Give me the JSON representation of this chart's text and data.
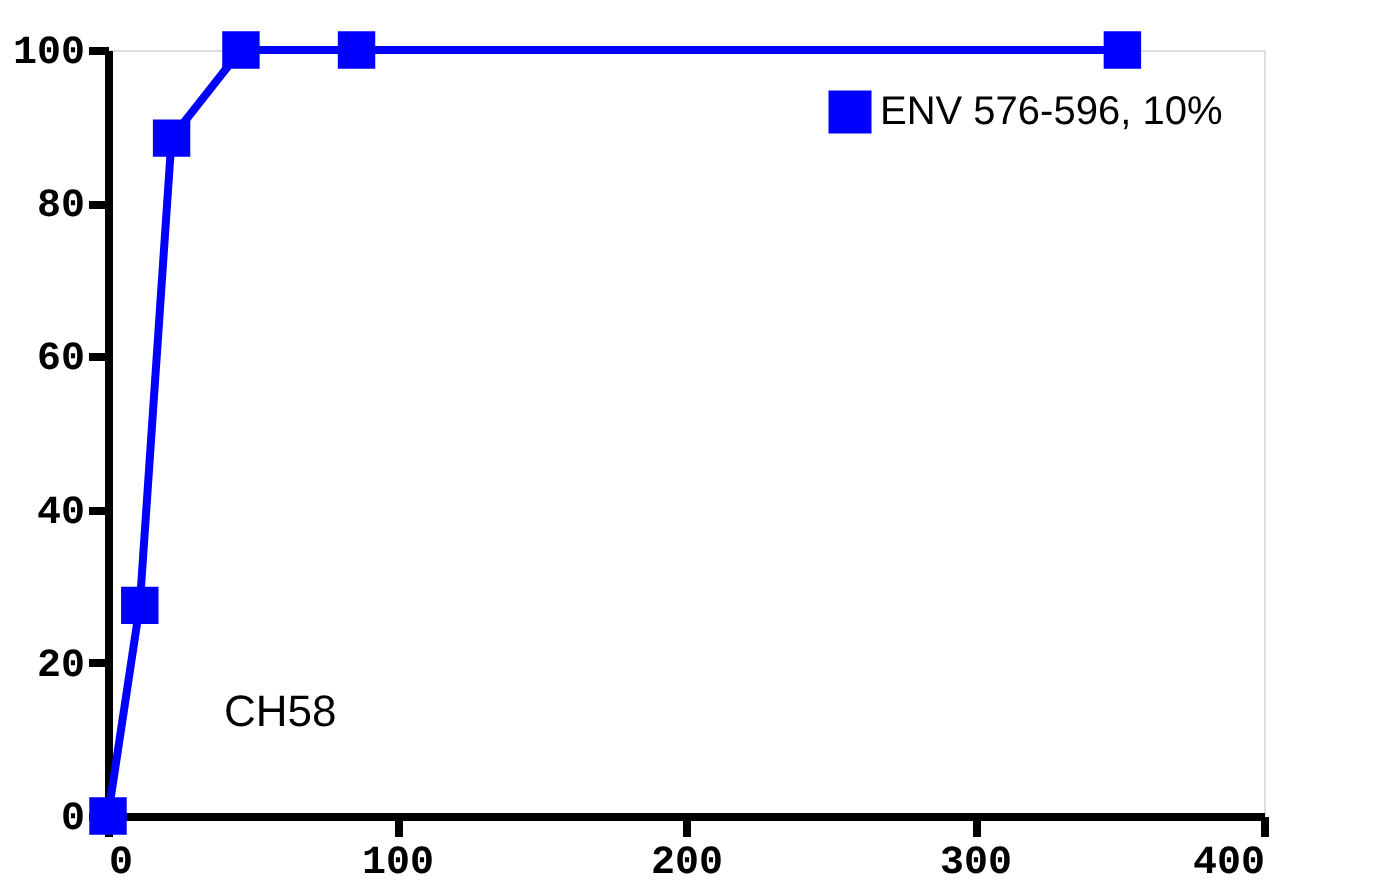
{
  "chart_data": {
    "type": "line",
    "x": [
      0,
      11,
      22,
      46,
      86,
      351
    ],
    "series": [
      {
        "name": "ENV 576-596, 10%",
        "color": "#0000ff",
        "values": [
          0,
          27.5,
          88.5,
          100,
          100,
          100
        ]
      }
    ],
    "xlim": [
      0,
      400
    ],
    "xticks": [
      0,
      100,
      200,
      300,
      400
    ],
    "ylim": [
      0,
      100
    ],
    "yticks": [
      0,
      20,
      40,
      60,
      80,
      100
    ],
    "annotations": [
      "CH58"
    ],
    "legend": "top right",
    "marker": "square",
    "grid": false
  }
}
